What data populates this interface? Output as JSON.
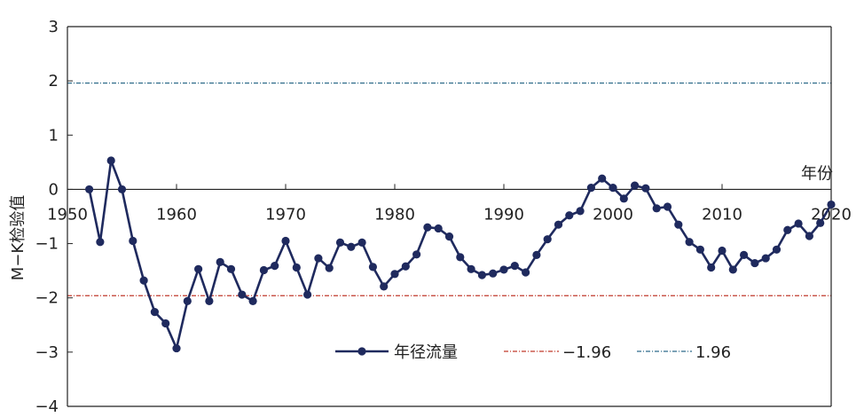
{
  "chart_data": {
    "type": "line",
    "title": "",
    "xlabel": "年份",
    "ylabel": "M−K检验值",
    "xlim": [
      1950,
      2020
    ],
    "ylim": [
      -4,
      3
    ],
    "x_ticks": [
      1950,
      1960,
      1970,
      1980,
      1990,
      2000,
      2010,
      2020
    ],
    "y_ticks": [
      3,
      2,
      1,
      0,
      -1,
      -2,
      -3,
      -4
    ],
    "x_tick_labels": [
      "1950",
      "1960",
      "1970",
      "1980",
      "1990",
      "2000",
      "2010",
      "2020"
    ],
    "y_tick_labels": [
      "3",
      "2",
      "1",
      "0",
      "−1",
      "−2",
      "−3",
      "−4"
    ],
    "grid": false,
    "legend_position": "bottom-center",
    "series": [
      {
        "name": "年径流量",
        "color": "#1f2a5e",
        "marker": "circle",
        "x": [
          1952,
          1953,
          1954,
          1955,
          1956,
          1957,
          1958,
          1959,
          1960,
          1961,
          1962,
          1963,
          1964,
          1965,
          1966,
          1967,
          1968,
          1969,
          1970,
          1971,
          1972,
          1973,
          1974,
          1975,
          1976,
          1977,
          1978,
          1979,
          1980,
          1981,
          1982,
          1983,
          1984,
          1985,
          1986,
          1987,
          1988,
          1989,
          1990,
          1991,
          1992,
          1993,
          1994,
          1995,
          1996,
          1997,
          1998,
          1999,
          2000,
          2001,
          2002,
          2003,
          2004,
          2005,
          2006,
          2007,
          2008,
          2009,
          2010,
          2011,
          2012,
          2013,
          2014,
          2015,
          2016,
          2017,
          2018,
          2019,
          2020
        ],
        "values": [
          0.0,
          -0.97,
          0.53,
          0.0,
          -0.95,
          -1.68,
          -2.26,
          -2.47,
          -2.93,
          -2.06,
          -1.47,
          -2.06,
          -1.34,
          -1.47,
          -1.94,
          -2.06,
          -1.49,
          -1.41,
          -0.95,
          -1.44,
          -1.94,
          -1.27,
          -1.45,
          -0.98,
          -1.06,
          -0.98,
          -1.43,
          -1.79,
          -1.56,
          -1.42,
          -1.2,
          -0.7,
          -0.72,
          -0.87,
          -1.25,
          -1.47,
          -1.58,
          -1.55,
          -1.48,
          -1.41,
          -1.53,
          -1.21,
          -0.92,
          -0.65,
          -0.48,
          -0.4,
          0.03,
          0.2,
          0.03,
          -0.17,
          0.07,
          0.02,
          -0.35,
          -0.32,
          -0.65,
          -0.97,
          -1.11,
          -1.44,
          -1.13,
          -1.48,
          -1.21,
          -1.36,
          -1.27,
          -1.11,
          -0.75,
          -0.63,
          -0.86,
          -0.62,
          -0.28
        ]
      },
      {
        "name": "−1.96",
        "color": "#c0392b",
        "style": "dash-dot",
        "value": -1.96
      },
      {
        "name": "1.96",
        "color": "#2e6b8a",
        "style": "dash-dot",
        "value": 1.96
      }
    ]
  }
}
